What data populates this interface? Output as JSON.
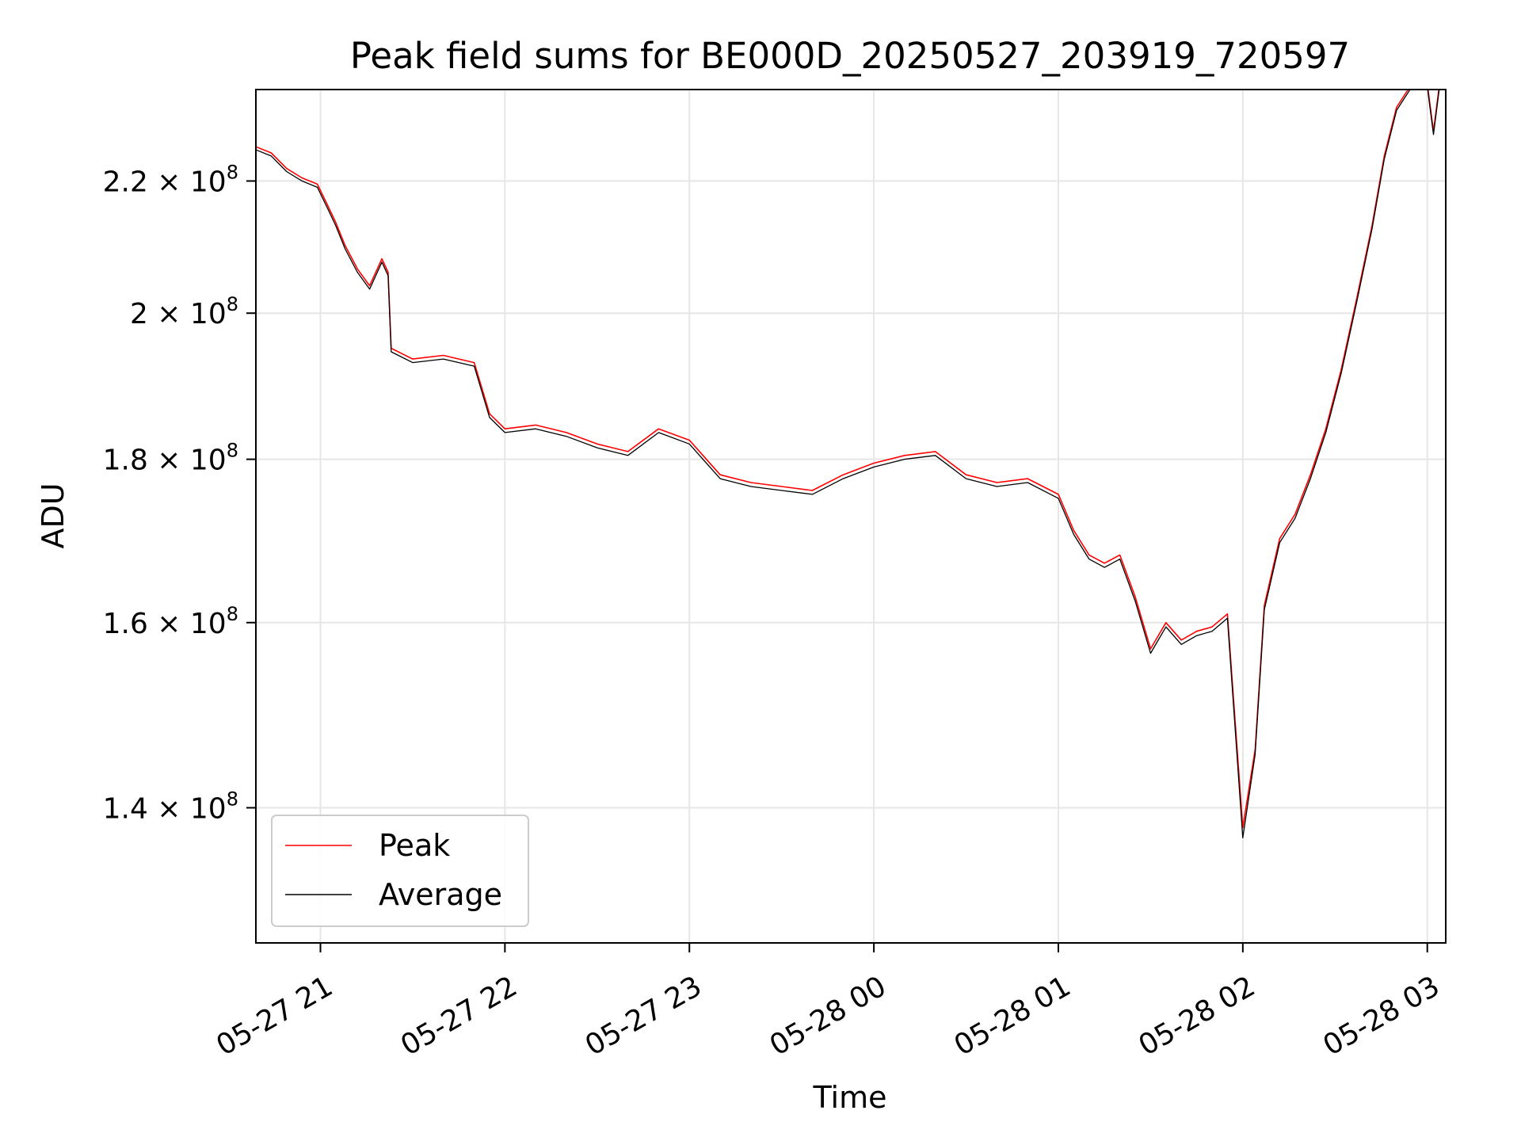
{
  "chart_data": {
    "type": "line",
    "title": "Peak field sums for BE000D_20250527_203919_720597",
    "xlabel": "Time",
    "ylabel": "ADU",
    "yscale": "log",
    "ylim": [
      127000000,
      235000000
    ],
    "xlim": [
      "2025-05-27 20:39:00",
      "2025-05-28 03:06:00"
    ],
    "grid": true,
    "legend_position": "lower-left",
    "x_ticks": [
      {
        "t": "2025-05-27 21:00",
        "label": "05-27 21"
      },
      {
        "t": "2025-05-27 22:00",
        "label": "05-27 22"
      },
      {
        "t": "2025-05-27 23:00",
        "label": "05-27 23"
      },
      {
        "t": "2025-05-28 00:00",
        "label": "05-28 00"
      },
      {
        "t": "2025-05-28 01:00",
        "label": "05-28 01"
      },
      {
        "t": "2025-05-28 02:00",
        "label": "05-28 02"
      },
      {
        "t": "2025-05-28 03:00",
        "label": "05-28 03"
      }
    ],
    "y_ticks": [
      {
        "value": 140000000,
        "mantissa": "1.4",
        "exp": "8"
      },
      {
        "value": 160000000,
        "mantissa": "1.6",
        "exp": "8"
      },
      {
        "value": 180000000,
        "mantissa": "1.8",
        "exp": "8"
      },
      {
        "value": 200000000,
        "mantissa": "2",
        "exp": "8"
      },
      {
        "value": 220000000,
        "mantissa": "2.2",
        "exp": "8"
      }
    ],
    "series": [
      {
        "name": "Peak",
        "color": "#ff0000",
        "points": [
          [
            "2025-05-27 20:39",
            225500000
          ],
          [
            "2025-05-27 20:44",
            224500000
          ],
          [
            "2025-05-27 20:49",
            222000000
          ],
          [
            "2025-05-27 20:54",
            220500000
          ],
          [
            "2025-05-27 20:59",
            219500000
          ],
          [
            "2025-05-27 21:02",
            216500000
          ],
          [
            "2025-05-27 21:05",
            213500000
          ],
          [
            "2025-05-27 21:08",
            210000000
          ],
          [
            "2025-05-27 21:12",
            206500000
          ],
          [
            "2025-05-27 21:16",
            204000000
          ],
          [
            "2025-05-27 21:20",
            208000000
          ],
          [
            "2025-05-27 21:22",
            206000000
          ],
          [
            "2025-05-27 21:23",
            195000000
          ],
          [
            "2025-05-27 21:30",
            193500000
          ],
          [
            "2025-05-27 21:40",
            194000000
          ],
          [
            "2025-05-27 21:50",
            193000000
          ],
          [
            "2025-05-27 21:55",
            186000000
          ],
          [
            "2025-05-27 22:00",
            184000000
          ],
          [
            "2025-05-27 22:10",
            184500000
          ],
          [
            "2025-05-27 22:20",
            183500000
          ],
          [
            "2025-05-27 22:30",
            182000000
          ],
          [
            "2025-05-27 22:40",
            181000000
          ],
          [
            "2025-05-27 22:50",
            184000000
          ],
          [
            "2025-05-27 23:00",
            182500000
          ],
          [
            "2025-05-27 23:10",
            178000000
          ],
          [
            "2025-05-27 23:20",
            177000000
          ],
          [
            "2025-05-27 23:30",
            176500000
          ],
          [
            "2025-05-27 23:40",
            176000000
          ],
          [
            "2025-05-27 23:50",
            178000000
          ],
          [
            "2025-05-28 00:00",
            179500000
          ],
          [
            "2025-05-28 00:10",
            180500000
          ],
          [
            "2025-05-28 00:20",
            181000000
          ],
          [
            "2025-05-28 00:30",
            178000000
          ],
          [
            "2025-05-28 00:40",
            177000000
          ],
          [
            "2025-05-28 00:50",
            177500000
          ],
          [
            "2025-05-28 01:00",
            175500000
          ],
          [
            "2025-05-28 01:05",
            171000000
          ],
          [
            "2025-05-28 01:10",
            168000000
          ],
          [
            "2025-05-28 01:15",
            167000000
          ],
          [
            "2025-05-28 01:20",
            168000000
          ],
          [
            "2025-05-28 01:25",
            163000000
          ],
          [
            "2025-05-28 01:30",
            157000000
          ],
          [
            "2025-05-28 01:35",
            160000000
          ],
          [
            "2025-05-28 01:40",
            158000000
          ],
          [
            "2025-05-28 01:45",
            159000000
          ],
          [
            "2025-05-28 01:50",
            159500000
          ],
          [
            "2025-05-28 01:55",
            161000000
          ],
          [
            "2025-05-28 02:00",
            138000000
          ],
          [
            "2025-05-28 02:04",
            146000000
          ],
          [
            "2025-05-28 02:07",
            162000000
          ],
          [
            "2025-05-28 02:12",
            170000000
          ],
          [
            "2025-05-28 02:17",
            173000000
          ],
          [
            "2025-05-28 02:22",
            178000000
          ],
          [
            "2025-05-28 02:27",
            184000000
          ],
          [
            "2025-05-28 02:32",
            192000000
          ],
          [
            "2025-05-28 02:37",
            202000000
          ],
          [
            "2025-05-28 02:42",
            213000000
          ],
          [
            "2025-05-28 02:46",
            224000000
          ],
          [
            "2025-05-28 02:50",
            232000000
          ],
          [
            "2025-05-28 02:55",
            236000000
          ],
          [
            "2025-05-28 03:00",
            236000000
          ],
          [
            "2025-05-28 03:02",
            228000000
          ],
          [
            "2025-05-28 03:04",
            236000000
          ]
        ]
      },
      {
        "name": "Average",
        "color": "#000000",
        "points": [
          [
            "2025-05-27 20:39",
            225000000
          ],
          [
            "2025-05-27 20:44",
            224000000
          ],
          [
            "2025-05-27 20:49",
            221500000
          ],
          [
            "2025-05-27 20:54",
            220000000
          ],
          [
            "2025-05-27 20:59",
            219000000
          ],
          [
            "2025-05-27 21:02",
            216000000
          ],
          [
            "2025-05-27 21:05",
            213000000
          ],
          [
            "2025-05-27 21:08",
            209500000
          ],
          [
            "2025-05-27 21:12",
            206000000
          ],
          [
            "2025-05-27 21:16",
            203500000
          ],
          [
            "2025-05-27 21:20",
            207500000
          ],
          [
            "2025-05-27 21:22",
            205500000
          ],
          [
            "2025-05-27 21:23",
            194500000
          ],
          [
            "2025-05-27 21:30",
            193000000
          ],
          [
            "2025-05-27 21:40",
            193500000
          ],
          [
            "2025-05-27 21:50",
            192500000
          ],
          [
            "2025-05-27 21:55",
            185500000
          ],
          [
            "2025-05-27 22:00",
            183500000
          ],
          [
            "2025-05-27 22:10",
            184000000
          ],
          [
            "2025-05-27 22:20",
            183000000
          ],
          [
            "2025-05-27 22:30",
            181500000
          ],
          [
            "2025-05-27 22:40",
            180500000
          ],
          [
            "2025-05-27 22:50",
            183500000
          ],
          [
            "2025-05-27 23:00",
            182000000
          ],
          [
            "2025-05-27 23:10",
            177500000
          ],
          [
            "2025-05-27 23:20",
            176500000
          ],
          [
            "2025-05-27 23:30",
            176000000
          ],
          [
            "2025-05-27 23:40",
            175500000
          ],
          [
            "2025-05-27 23:50",
            177500000
          ],
          [
            "2025-05-28 00:00",
            179000000
          ],
          [
            "2025-05-28 00:10",
            180000000
          ],
          [
            "2025-05-28 00:20",
            180500000
          ],
          [
            "2025-05-28 00:30",
            177500000
          ],
          [
            "2025-05-28 00:40",
            176500000
          ],
          [
            "2025-05-28 00:50",
            177000000
          ],
          [
            "2025-05-28 01:00",
            175000000
          ],
          [
            "2025-05-28 01:05",
            170500000
          ],
          [
            "2025-05-28 01:10",
            167500000
          ],
          [
            "2025-05-28 01:15",
            166500000
          ],
          [
            "2025-05-28 01:20",
            167500000
          ],
          [
            "2025-05-28 01:25",
            162500000
          ],
          [
            "2025-05-28 01:30",
            156500000
          ],
          [
            "2025-05-28 01:35",
            159500000
          ],
          [
            "2025-05-28 01:40",
            157500000
          ],
          [
            "2025-05-28 01:45",
            158500000
          ],
          [
            "2025-05-28 01:50",
            159000000
          ],
          [
            "2025-05-28 01:55",
            160500000
          ],
          [
            "2025-05-28 02:00",
            137000000
          ],
          [
            "2025-05-28 02:04",
            145500000
          ],
          [
            "2025-05-28 02:07",
            161500000
          ],
          [
            "2025-05-28 02:12",
            169500000
          ],
          [
            "2025-05-28 02:17",
            172500000
          ],
          [
            "2025-05-28 02:22",
            177500000
          ],
          [
            "2025-05-28 02:27",
            183500000
          ],
          [
            "2025-05-28 02:32",
            191500000
          ],
          [
            "2025-05-28 02:37",
            201500000
          ],
          [
            "2025-05-28 02:42",
            212500000
          ],
          [
            "2025-05-28 02:46",
            223500000
          ],
          [
            "2025-05-28 02:50",
            231500000
          ],
          [
            "2025-05-28 02:55",
            235500000
          ],
          [
            "2025-05-28 03:00",
            235500000
          ],
          [
            "2025-05-28 03:02",
            227500000
          ],
          [
            "2025-05-28 03:04",
            235500000
          ]
        ]
      }
    ]
  }
}
